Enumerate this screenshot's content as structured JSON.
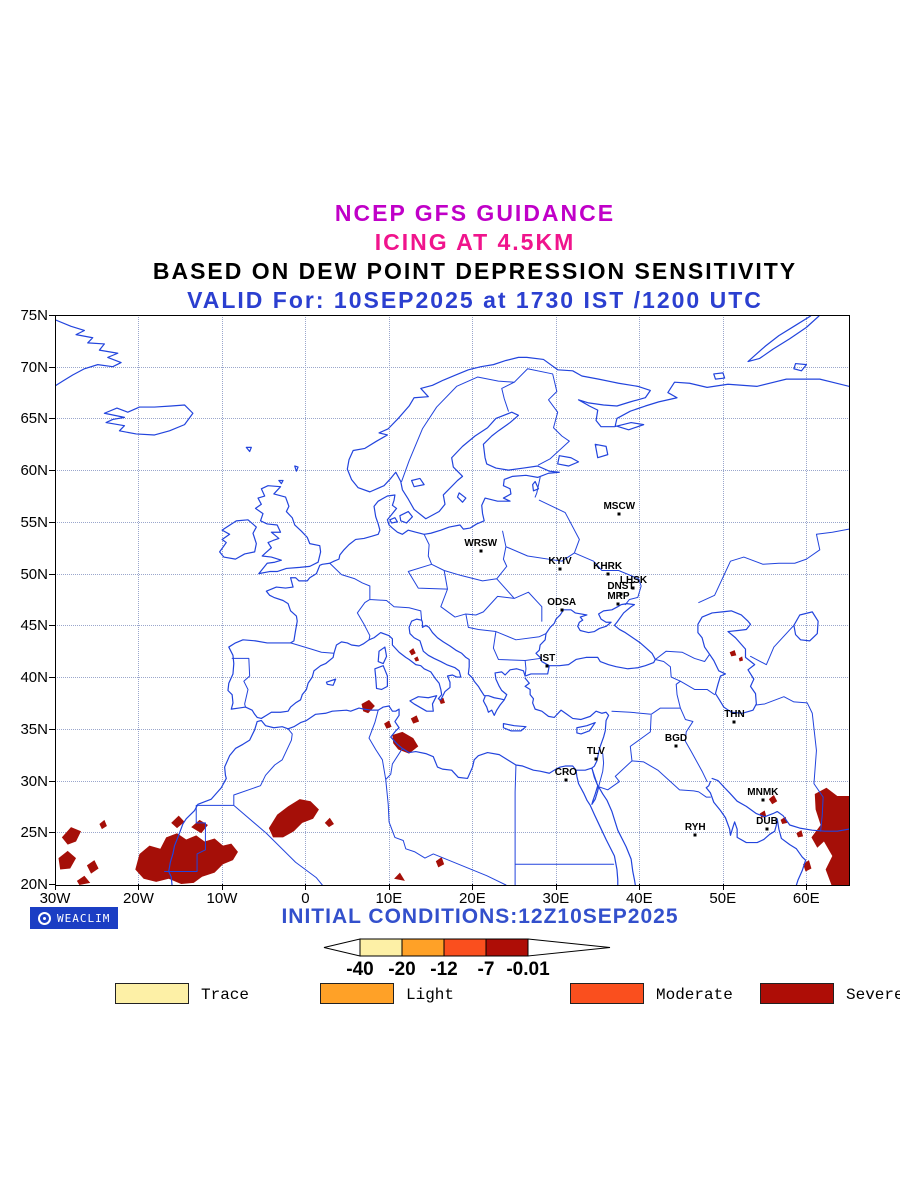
{
  "header": {
    "line1": "NCEP GFS GUIDANCE",
    "line2": "ICING AT 4.5KM",
    "line3": "BASED ON DEW POINT DEPRESSION SENSITIVITY",
    "line4": "VALID For: 10SEP2025 at 1730 IST /1200 UTC"
  },
  "colors": {
    "line1": "#c000c8",
    "line2": "#f0148c",
    "line3": "#000000",
    "line4": "#2b3fd0",
    "coast": "#2244dd",
    "grid": "#9aa6cc",
    "severe_fill": "#a50f08",
    "logo_bg": "#1b3ec4",
    "initial_text": "#3350cc"
  },
  "map": {
    "lat_ticks": [
      "75N",
      "70N",
      "65N",
      "60N",
      "55N",
      "50N",
      "45N",
      "40N",
      "35N",
      "30N",
      "25N",
      "20N"
    ],
    "lat_values": [
      75,
      70,
      65,
      60,
      55,
      50,
      45,
      40,
      35,
      30,
      25,
      20
    ],
    "lon_ticks": [
      "30W",
      "20W",
      "10W",
      "0",
      "10E",
      "20E",
      "30E",
      "40E",
      "50E",
      "60E"
    ],
    "lon_values": [
      -30,
      -20,
      -10,
      0,
      10,
      20,
      30,
      40,
      50,
      60
    ],
    "cities": [
      {
        "name": "MSCW",
        "lon": 37.6,
        "lat": 55.8
      },
      {
        "name": "WRSW",
        "lon": 21.0,
        "lat": 52.2
      },
      {
        "name": "KYIV",
        "lon": 30.5,
        "lat": 50.4
      },
      {
        "name": "KHRK",
        "lon": 36.2,
        "lat": 50.0
      },
      {
        "name": "LHSK",
        "lon": 39.3,
        "lat": 48.6
      },
      {
        "name": "DNST",
        "lon": 37.8,
        "lat": 48.0
      },
      {
        "name": "MRP",
        "lon": 37.5,
        "lat": 47.1
      },
      {
        "name": "ODSA",
        "lon": 30.7,
        "lat": 46.5
      },
      {
        "name": "IST",
        "lon": 29.0,
        "lat": 41.1
      },
      {
        "name": "THN",
        "lon": 51.4,
        "lat": 35.7
      },
      {
        "name": "BGD",
        "lon": 44.4,
        "lat": 33.3
      },
      {
        "name": "TLV",
        "lon": 34.8,
        "lat": 32.1
      },
      {
        "name": "CRO",
        "lon": 31.2,
        "lat": 30.1
      },
      {
        "name": "MNMK",
        "lon": 54.8,
        "lat": 28.1
      },
      {
        "name": "DUB",
        "lon": 55.3,
        "lat": 25.3
      },
      {
        "name": "RYH",
        "lon": 46.7,
        "lat": 24.7
      }
    ]
  },
  "footer": {
    "logo_text": "WEACLIM",
    "initial_conditions": "INITIAL CONDITIONS:12Z10SEP2025",
    "colorbar": {
      "tick_labels": [
        "-40",
        "-20",
        "-12",
        "-7",
        "-0.01"
      ],
      "segment_colors": [
        "#fdf0a6",
        "#ffa127",
        "#fa4f1e",
        "#ae0d06"
      ]
    },
    "legend": [
      {
        "label": "Trace",
        "color": "#fdf0a6"
      },
      {
        "label": "Light",
        "color": "#ffa127"
      },
      {
        "label": "Moderate",
        "color": "#fa4f1e"
      },
      {
        "label": "Severe",
        "color": "#ae0d06"
      }
    ]
  }
}
